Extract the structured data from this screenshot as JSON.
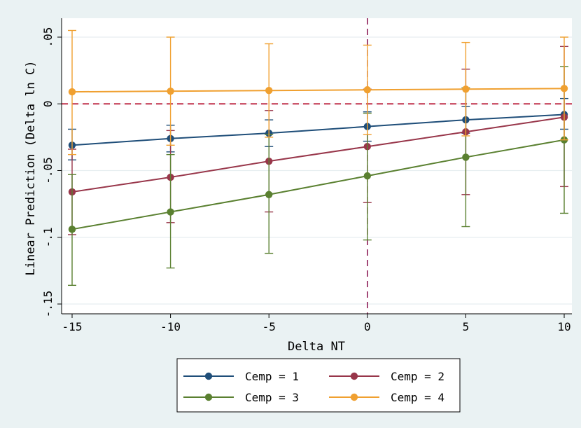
{
  "chart_data": {
    "type": "line",
    "xlabel": "Delta NT",
    "ylabel": "Linear Prediction (Delta ln C)",
    "xlim": [
      -15,
      10
    ],
    "ylim": [
      -0.155,
      0.058
    ],
    "x_ticks": [
      -15,
      -10,
      -5,
      0,
      5,
      10
    ],
    "x_tick_labels": [
      "-15",
      "-10",
      "-5",
      "0",
      "5",
      "10"
    ],
    "y_ticks": [
      0.05,
      0,
      -0.05,
      -0.1,
      -0.15
    ],
    "y_tick_labels": [
      ".05",
      "0",
      "-.05",
      "-.1",
      "-.15"
    ],
    "reference_lines": [
      {
        "axis": "y",
        "value": 0,
        "color": "#c0304a",
        "style": "dashed"
      },
      {
        "axis": "x",
        "value": 0,
        "color": "#8c1a55",
        "style": "dashed"
      }
    ],
    "grid": "horizontal",
    "legend_position": "bottom",
    "x": [
      -15,
      -10,
      -5,
      0,
      5,
      10
    ],
    "series": [
      {
        "name": "Cemp = 1",
        "color": "#1f4e79",
        "values": [
          -0.031,
          -0.026,
          -0.022,
          -0.017,
          -0.012,
          -0.008
        ],
        "ci_low": [
          -0.042,
          -0.036,
          -0.032,
          -0.028,
          -0.022,
          -0.019
        ],
        "ci_high": [
          -0.019,
          -0.016,
          -0.012,
          -0.006,
          -0.002,
          0.004
        ]
      },
      {
        "name": "Cemp = 2",
        "color": "#98364a",
        "values": [
          -0.066,
          -0.055,
          -0.043,
          -0.032,
          -0.021,
          -0.01
        ],
        "ci_low": [
          -0.098,
          -0.089,
          -0.081,
          -0.074,
          -0.068,
          -0.062
        ],
        "ci_high": [
          -0.034,
          -0.02,
          -0.005,
          0.011,
          0.026,
          0.043
        ]
      },
      {
        "name": "Cemp = 3",
        "color": "#5a8030",
        "values": [
          -0.094,
          -0.081,
          -0.068,
          -0.054,
          -0.04,
          -0.027
        ],
        "ci_low": [
          -0.136,
          -0.123,
          -0.112,
          -0.102,
          -0.092,
          -0.082
        ],
        "ci_high": [
          -0.053,
          -0.038,
          -0.023,
          -0.007,
          0.012,
          0.028
        ]
      },
      {
        "name": "Cemp = 4",
        "color": "#f0a030",
        "values": [
          0.009,
          0.0095,
          0.01,
          0.0105,
          0.011,
          0.0115
        ],
        "ci_low": [
          -0.038,
          -0.031,
          -0.025,
          -0.023,
          -0.024,
          -0.027
        ],
        "ci_high": [
          0.055,
          0.05,
          0.045,
          0.044,
          0.046,
          0.05
        ]
      }
    ]
  }
}
